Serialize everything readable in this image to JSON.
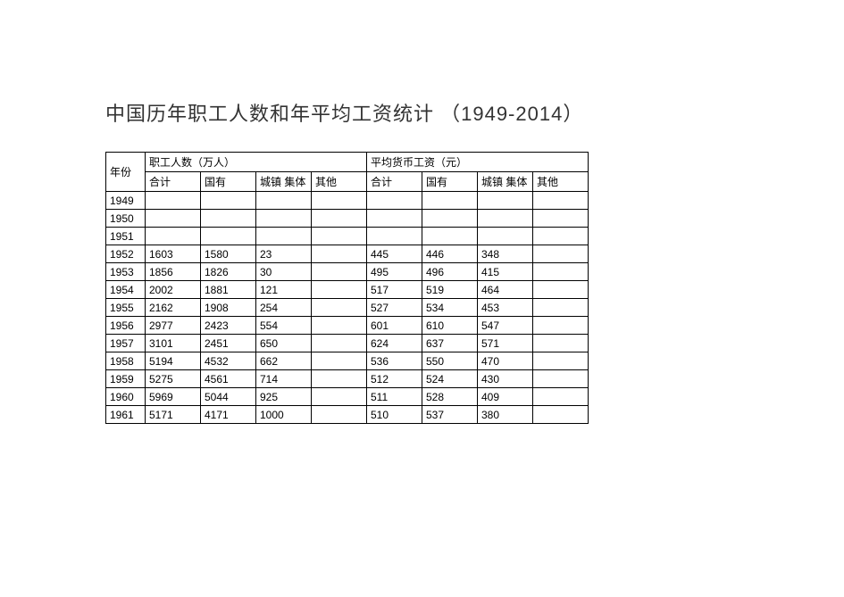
{
  "title": "中国历年职工人数和年平均工资统计 （1949-2014）",
  "table": {
    "columns": {
      "year": "年份",
      "group_a": "职工人数（万人）",
      "group_b": "平均货币工资（元）",
      "sub_total": "合计",
      "sub_state": "国有",
      "sub_urban": "城镇 集体",
      "sub_other": "其他"
    },
    "rows": [
      {
        "year": "1949",
        "a_total": "",
        "a_state": "",
        "a_urban": "",
        "a_other": "",
        "b_total": "",
        "b_state": "",
        "b_urban": "",
        "b_other": ""
      },
      {
        "year": "1950",
        "a_total": "",
        "a_state": "",
        "a_urban": "",
        "a_other": "",
        "b_total": "",
        "b_state": "",
        "b_urban": "",
        "b_other": ""
      },
      {
        "year": "1951",
        "a_total": "",
        "a_state": "",
        "a_urban": "",
        "a_other": "",
        "b_total": "",
        "b_state": "",
        "b_urban": "",
        "b_other": ""
      },
      {
        "year": "1952",
        "a_total": "1603",
        "a_state": "1580",
        "a_urban": "23",
        "a_other": "",
        "b_total": "445",
        "b_state": "446",
        "b_urban": "348",
        "b_other": ""
      },
      {
        "year": "1953",
        "a_total": "1856",
        "a_state": "1826",
        "a_urban": "30",
        "a_other": "",
        "b_total": "495",
        "b_state": "496",
        "b_urban": "415",
        "b_other": ""
      },
      {
        "year": "1954",
        "a_total": "2002",
        "a_state": "1881",
        "a_urban": "121",
        "a_other": "",
        "b_total": "517",
        "b_state": "519",
        "b_urban": "464",
        "b_other": ""
      },
      {
        "year": "1955",
        "a_total": "2162",
        "a_state": "1908",
        "a_urban": "254",
        "a_other": "",
        "b_total": "527",
        "b_state": "534",
        "b_urban": "453",
        "b_other": ""
      },
      {
        "year": "1956",
        "a_total": "2977",
        "a_state": "2423",
        "a_urban": "554",
        "a_other": "",
        "b_total": "601",
        "b_state": "610",
        "b_urban": "547",
        "b_other": ""
      },
      {
        "year": "1957",
        "a_total": "3101",
        "a_state": "2451",
        "a_urban": "650",
        "a_other": "",
        "b_total": "624",
        "b_state": "637",
        "b_urban": "571",
        "b_other": ""
      },
      {
        "year": "1958",
        "a_total": "5194",
        "a_state": "4532",
        "a_urban": "662",
        "a_other": "",
        "b_total": "536",
        "b_state": "550",
        "b_urban": "470",
        "b_other": ""
      },
      {
        "year": "1959",
        "a_total": "5275",
        "a_state": "4561",
        "a_urban": "714",
        "a_other": "",
        "b_total": "512",
        "b_state": "524",
        "b_urban": "430",
        "b_other": ""
      },
      {
        "year": "1960",
        "a_total": "5969",
        "a_state": "5044",
        "a_urban": "925",
        "a_other": "",
        "b_total": "511",
        "b_state": "528",
        "b_urban": "409",
        "b_other": ""
      },
      {
        "year": "1961",
        "a_total": "5171",
        "a_state": "4171",
        "a_urban": "1000",
        "a_other": "",
        "b_total": "510",
        "b_state": "537",
        "b_urban": "380",
        "b_other": ""
      }
    ]
  },
  "style": {
    "background_color": "#ffffff",
    "border_color": "#000000",
    "text_color": "#000000",
    "title_color": "#333333",
    "title_fontsize": 22,
    "cell_fontsize": 12,
    "col_year_width": 44,
    "col_data_width": 62
  }
}
